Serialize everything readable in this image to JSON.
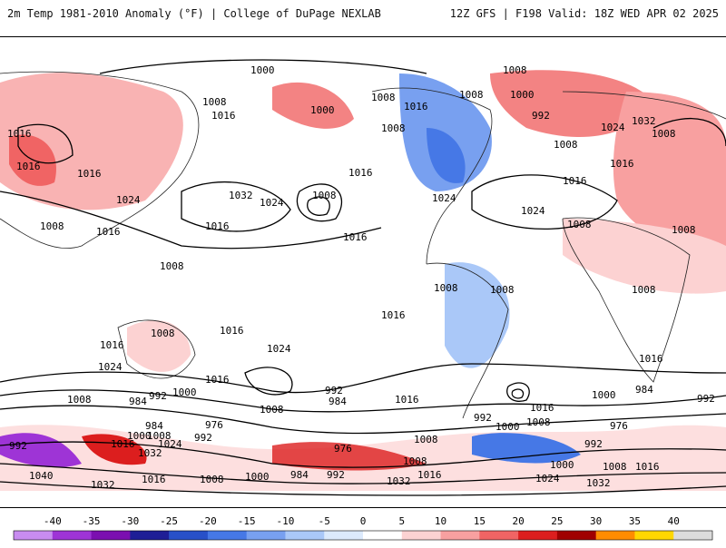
{
  "header": {
    "title_left": "2m Temp 1981-2010 Anomaly (°F) | College of DuPage NEXLAB",
    "title_right": "12Z GFS | F198 Valid: 18Z WED APR 02 2025"
  },
  "map": {
    "projection": "global cylindrical, Pacific-centered",
    "contour_variable": "mean sea level pressure (hPa)",
    "contour_labels": [
      "1000",
      "1008",
      "1008",
      "1008",
      "1008",
      "1008",
      "1016",
      "1016",
      "1016",
      "1016",
      "1016",
      "1016",
      "1016",
      "1016",
      "1016",
      "1016",
      "1024",
      "1024",
      "1024",
      "1024",
      "1032",
      "1032",
      "1008",
      "1008",
      "1008",
      "1008",
      "1008",
      "1016",
      "1016",
      "1024",
      "1016",
      "1008",
      "1016",
      "1000",
      "984",
      "992",
      "984",
      "992",
      "1000",
      "976",
      "984",
      "1008",
      "1024",
      "1000",
      "1016",
      "992",
      "976",
      "1008",
      "1016",
      "984",
      "992",
      "1000",
      "1008",
      "1016",
      "1024",
      "1032",
      "1040",
      "1032",
      "1000",
      "992",
      "1008"
    ]
  },
  "colorbar": {
    "ticks": [
      "-40",
      "-35",
      "-30",
      "-25",
      "-20",
      "-15",
      "-10",
      "-5",
      "0",
      "5",
      "10",
      "15",
      "20",
      "25",
      "30",
      "35",
      "40"
    ],
    "colors": [
      "#c88cf0",
      "#9e34d6",
      "#7b0fb0",
      "#1e1e96",
      "#2850c8",
      "#4678e6",
      "#78a0f0",
      "#aac8f8",
      "#dceafc",
      "#ffffff",
      "#fcd2d2",
      "#f8a0a0",
      "#f06464",
      "#dc1e1e",
      "#a00000",
      "#ff8c00",
      "#ffd700",
      "#dcdcdc"
    ]
  },
  "chart_data": {
    "type": "heatmap",
    "title": "2m Temp 1981-2010 Anomaly (°F)",
    "color_scale_ticks": [
      -40,
      -35,
      -30,
      -25,
      -20,
      -15,
      -10,
      -5,
      0,
      5,
      10,
      15,
      20,
      25,
      30,
      35,
      40
    ]
  }
}
